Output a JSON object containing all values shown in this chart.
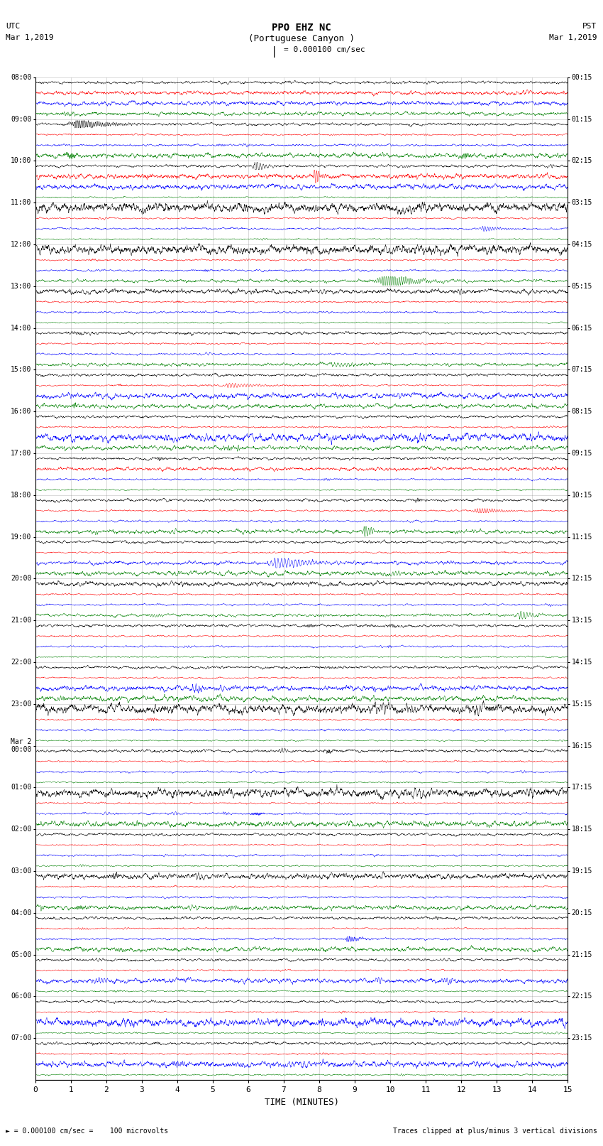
{
  "title_line1": "PPO EHZ NC",
  "title_line2": "(Portuguese Canyon )",
  "title_line3": "I = 0.000100 cm/sec",
  "top_left_label1": "UTC",
  "top_left_label2": "Mar 1,2019",
  "top_right_label1": "PST",
  "top_right_label2": "Mar 1,2019",
  "bottom_left_label": "► = 0.000100 cm/sec =    100 microvolts",
  "bottom_right_label": "Traces clipped at plus/minus 3 vertical divisions",
  "xlabel": "TIME (MINUTES)",
  "xlim": [
    0,
    15
  ],
  "xticks": [
    0,
    1,
    2,
    3,
    4,
    5,
    6,
    7,
    8,
    9,
    10,
    11,
    12,
    13,
    14,
    15
  ],
  "utc_labels": [
    "08:00",
    "09:00",
    "10:00",
    "11:00",
    "12:00",
    "13:00",
    "14:00",
    "15:00",
    "16:00",
    "17:00",
    "18:00",
    "19:00",
    "20:00",
    "21:00",
    "22:00",
    "23:00",
    "Mar 2\n00:00",
    "01:00",
    "02:00",
    "03:00",
    "04:00",
    "05:00",
    "06:00",
    "07:00"
  ],
  "pst_labels": [
    "00:15",
    "01:15",
    "02:15",
    "03:15",
    "04:15",
    "05:15",
    "06:15",
    "07:15",
    "08:15",
    "09:15",
    "10:15",
    "11:15",
    "12:15",
    "13:15",
    "14:15",
    "15:15",
    "16:15",
    "17:15",
    "18:15",
    "19:15",
    "20:15",
    "21:15",
    "22:15",
    "23:15"
  ],
  "num_hour_rows": 24,
  "traces_per_hour": 4,
  "trace_color_cycle": [
    "black",
    "red",
    "blue",
    "green"
  ],
  "bg_color": "white",
  "seed": 12345
}
